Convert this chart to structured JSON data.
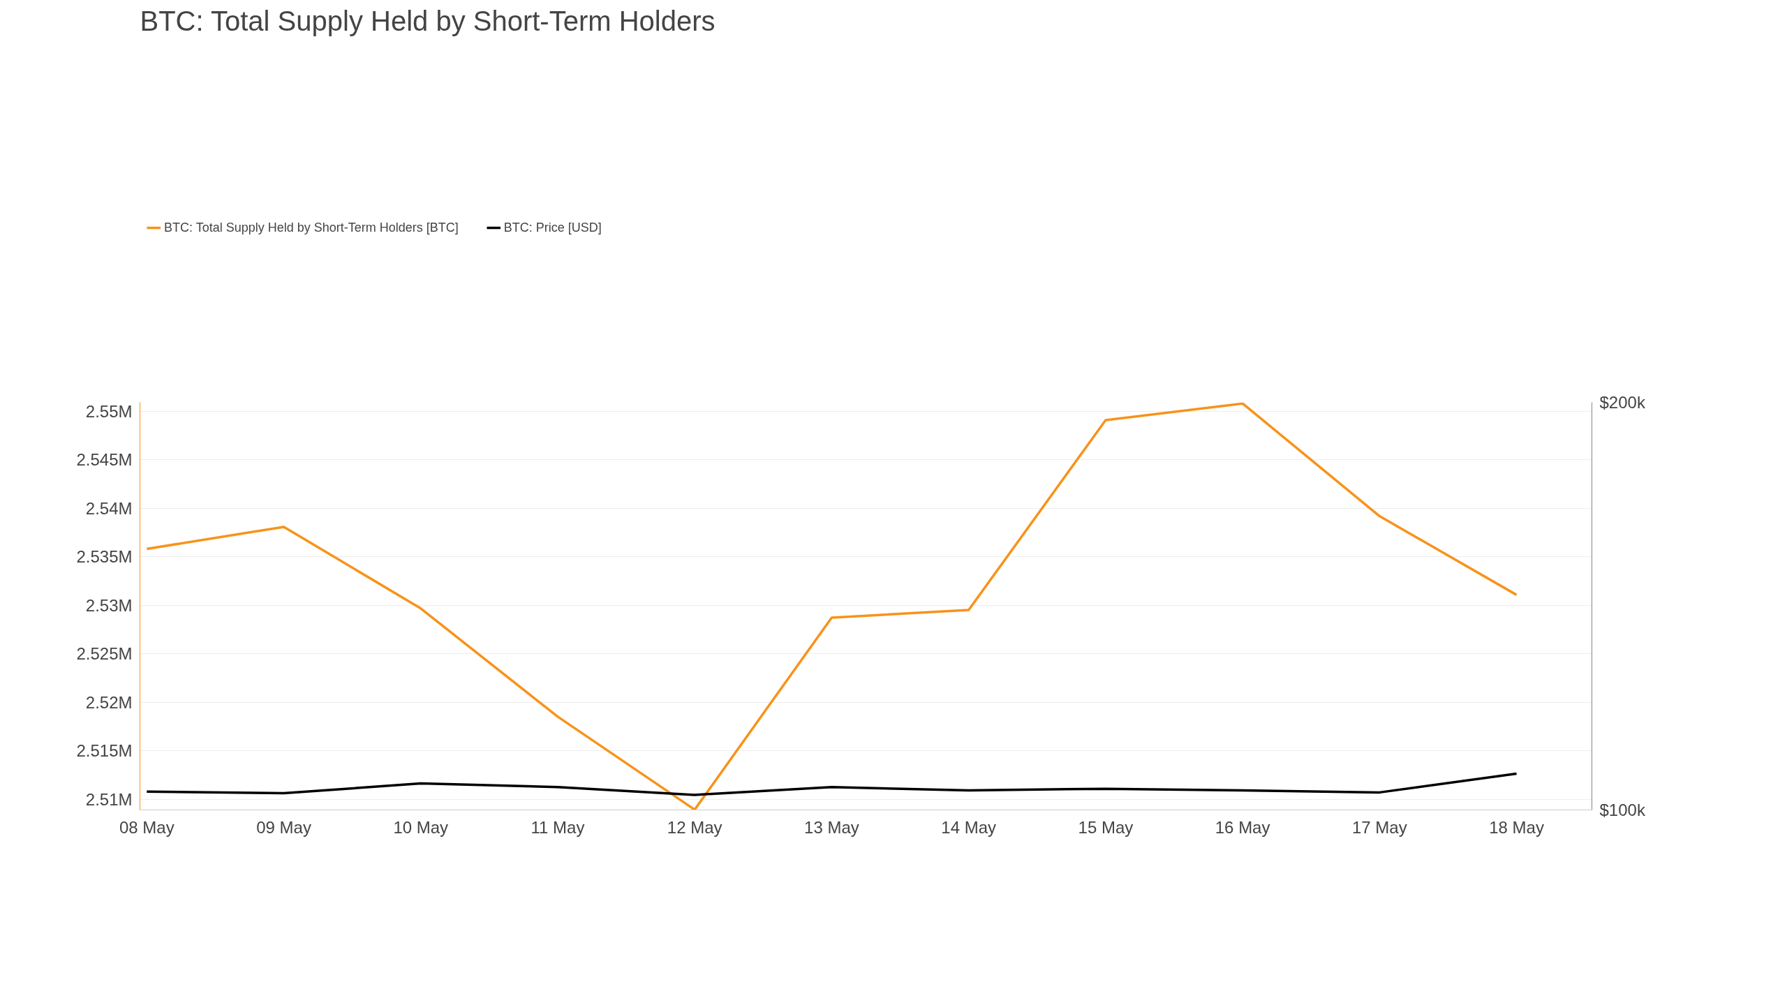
{
  "chart_data": {
    "type": "line",
    "title": "BTC: Total Supply Held by Short-Term Holders",
    "categories": [
      "08 May",
      "09 May",
      "10 May",
      "11 May",
      "12 May",
      "13 May",
      "14 May",
      "15 May",
      "16 May",
      "17 May",
      "18 May"
    ],
    "series": [
      {
        "name": "BTC: Total Supply Held by Short-Term Holders [BTC]",
        "color": "#f7931a",
        "values": [
          2535800,
          2538070,
          2529660,
          2518510,
          2508930,
          2528720,
          2529500,
          2549060,
          2550780,
          2539170,
          2531060
        ]
      },
      {
        "name": "BTC: Price [USD]",
        "color": "#000000",
        "axis": "y2",
        "values": [
          104500,
          104100,
          106500,
          105600,
          103700,
          105600,
          104800,
          105200,
          104800,
          104300,
          108900
        ]
      }
    ],
    "ylim": [
      2508900,
      2550900
    ],
    "yticks": [
      {
        "value": 2510000,
        "label": "2.51M"
      },
      {
        "value": 2515000,
        "label": "2.515M"
      },
      {
        "value": 2520000,
        "label": "2.52M"
      },
      {
        "value": 2525000,
        "label": "2.525M"
      },
      {
        "value": 2530000,
        "label": "2.53M"
      },
      {
        "value": 2535000,
        "label": "2.535M"
      },
      {
        "value": 2540000,
        "label": "2.54M"
      },
      {
        "value": 2545000,
        "label": "2.545M"
      },
      {
        "value": 2550000,
        "label": "2.55M"
      }
    ],
    "y2lim": [
      100000,
      200000
    ],
    "y2ticks": [
      {
        "value": 100000,
        "label": "$100k"
      },
      {
        "value": 200000,
        "label": "$200k"
      }
    ],
    "grid": "y",
    "legend": "top left",
    "line_style": "solid"
  }
}
